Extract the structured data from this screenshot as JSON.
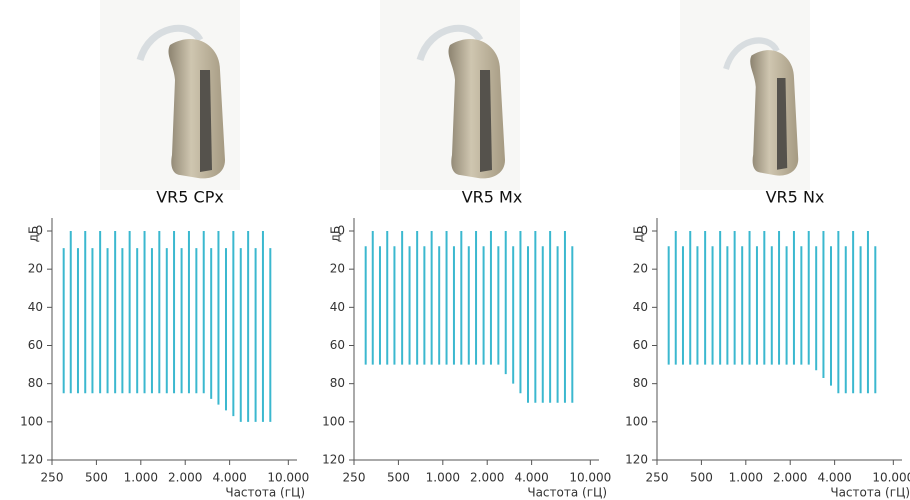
{
  "chart_data": [
    {
      "type": "range",
      "title": "VR5 CPx",
      "x_label": "Частота (гЦ)",
      "y_label": "дБ",
      "color": "#3bb8cf",
      "xscale": "log",
      "y_inverted": true,
      "xlim": [
        250,
        12000
      ],
      "ylim": [
        0,
        120
      ],
      "xticks": [
        250,
        500,
        {
          "value": 1000,
          "label": "1.000"
        },
        {
          "value": 2000,
          "label": "2.000"
        },
        {
          "value": 4000,
          "label": "4.000"
        },
        {
          "value": 10000,
          "label": "10.000"
        }
      ],
      "yticks": [
        0,
        20,
        40,
        60,
        80,
        100,
        120
      ],
      "x": [
        300,
        335,
        375,
        420,
        470,
        530,
        595,
        670,
        750,
        840,
        945,
        1060,
        1190,
        1335,
        1500,
        1680,
        1890,
        2120,
        2380,
        2670,
        3000,
        3360,
        3780,
        4240,
        4760,
        5340,
        6000,
        6730,
        7550
      ],
      "start_values": [
        9,
        0,
        9,
        0,
        9,
        0,
        9,
        0,
        9,
        0,
        9,
        0,
        9,
        0,
        9,
        0,
        9,
        0,
        9,
        0,
        9,
        0,
        9,
        0,
        9,
        0,
        9,
        0,
        9
      ],
      "values": [
        85,
        85,
        85,
        85,
        85,
        85,
        85,
        85,
        85,
        85,
        85,
        85,
        85,
        85,
        85,
        85,
        85,
        85,
        85,
        85,
        88,
        91,
        94,
        97,
        100,
        100,
        100,
        100,
        100
      ]
    },
    {
      "type": "range",
      "title": "VR5 Mx",
      "x_label": "Частота (гЦ)",
      "y_label": "дБ",
      "color": "#3bb8cf",
      "xscale": "log",
      "y_inverted": true,
      "xlim": [
        250,
        12000
      ],
      "ylim": [
        0,
        120
      ],
      "xticks": [
        250,
        500,
        {
          "value": 1000,
          "label": "1.000"
        },
        {
          "value": 2000,
          "label": "2.000"
        },
        {
          "value": 4000,
          "label": "4.000"
        },
        {
          "value": 10000,
          "label": "10.000"
        }
      ],
      "yticks": [
        0,
        20,
        40,
        60,
        80,
        100,
        120
      ],
      "x": [
        300,
        335,
        375,
        420,
        470,
        530,
        595,
        670,
        750,
        840,
        945,
        1060,
        1190,
        1335,
        1500,
        1680,
        1890,
        2120,
        2380,
        2670,
        3000,
        3360,
        3780,
        4240,
        4760,
        5340,
        6000,
        6730,
        7550
      ],
      "start_values": [
        8,
        0,
        8,
        0,
        8,
        0,
        8,
        0,
        8,
        0,
        8,
        0,
        8,
        0,
        8,
        0,
        8,
        0,
        8,
        0,
        8,
        0,
        8,
        0,
        8,
        0,
        8,
        0,
        8
      ],
      "values": [
        70,
        70,
        70,
        70,
        70,
        70,
        70,
        70,
        70,
        70,
        70,
        70,
        70,
        70,
        70,
        70,
        70,
        70,
        70,
        75,
        80,
        85,
        90,
        90,
        90,
        90,
        90,
        90,
        90
      ]
    },
    {
      "type": "range",
      "title": "VR5 Nx",
      "x_label": "Частота (гЦ)",
      "y_label": "дБ",
      "color": "#3bb8cf",
      "xscale": "log",
      "y_inverted": true,
      "xlim": [
        250,
        12000
      ],
      "ylim": [
        0,
        120
      ],
      "xticks": [
        250,
        500,
        {
          "value": 1000,
          "label": "1.000"
        },
        {
          "value": 2000,
          "label": "2.000"
        },
        {
          "value": 4000,
          "label": "4.000"
        },
        {
          "value": 10000,
          "label": "10.000"
        }
      ],
      "yticks": [
        0,
        20,
        40,
        60,
        80,
        100,
        120
      ],
      "x": [
        300,
        335,
        375,
        420,
        470,
        530,
        595,
        670,
        750,
        840,
        945,
        1060,
        1190,
        1335,
        1500,
        1680,
        1890,
        2120,
        2380,
        2670,
        3000,
        3360,
        3780,
        4240,
        4760,
        5340,
        6000,
        6730,
        7550
      ],
      "start_values": [
        8,
        0,
        8,
        0,
        8,
        0,
        8,
        0,
        8,
        0,
        8,
        0,
        8,
        0,
        8,
        0,
        8,
        0,
        8,
        0,
        8,
        0,
        8,
        0,
        8,
        0,
        8,
        0,
        8
      ],
      "values": [
        70,
        70,
        70,
        70,
        70,
        70,
        70,
        70,
        70,
        70,
        70,
        70,
        70,
        70,
        70,
        70,
        70,
        70,
        70,
        70,
        73,
        77,
        81,
        85,
        85,
        85,
        85,
        85,
        85
      ]
    }
  ]
}
